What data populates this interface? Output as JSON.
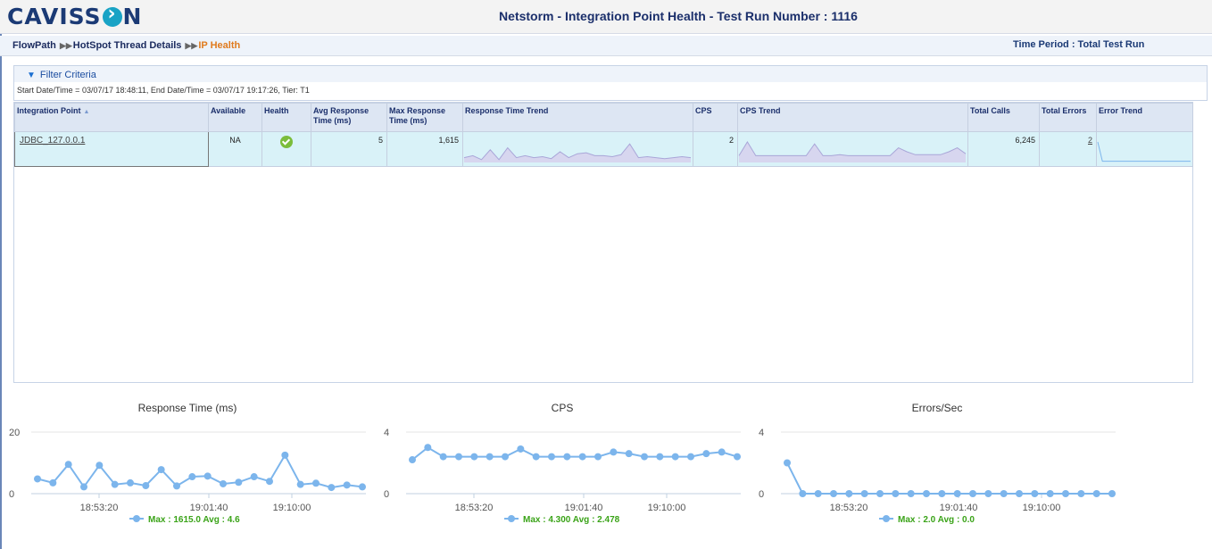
{
  "header": {
    "logo": "CAVISSON",
    "title": "Netstorm - Integration Point Health - Test Run Number : 1116"
  },
  "breadcrumb": {
    "items": [
      "FlowPath",
      "HotSpot Thread Details",
      "IP Health"
    ],
    "time_period": "Time Period : Total Test Run"
  },
  "filter": {
    "label": "Filter Criteria",
    "info": "Start Date/Time = 03/07/17 18:48:11, End Date/Time = 03/07/17 19:17:26, Tier: T1"
  },
  "table": {
    "columns": [
      "Integration Point",
      "Available",
      "Health",
      "Avg Response Time (ms)",
      "Max Response Time (ms)",
      "Response Time Trend",
      "CPS",
      "CPS Trend",
      "Total Calls",
      "Total Errors",
      "Error Trend"
    ],
    "rows": [
      {
        "integration_point": "JDBC_127.0.0.1",
        "available": "NA",
        "health": "ok",
        "avg_response": "5",
        "max_response": "1,615",
        "cps": "2",
        "total_calls": "6,245",
        "total_errors": "2",
        "rt_trend": [
          0.2,
          0.3,
          0.1,
          0.6,
          0.1,
          0.7,
          0.2,
          0.3,
          0.2,
          0.25,
          0.15,
          0.5,
          0.2,
          0.4,
          0.45,
          0.3,
          0.3,
          0.25,
          0.35,
          0.9,
          0.2,
          0.25,
          0.2,
          0.15,
          0.2,
          0.25,
          0.2
        ],
        "cps_trend": [
          0.3,
          1,
          0.3,
          0.3,
          0.3,
          0.3,
          0.3,
          0.3,
          0.3,
          0.9,
          0.3,
          0.3,
          0.35,
          0.3,
          0.3,
          0.3,
          0.3,
          0.3,
          0.3,
          0.7,
          0.5,
          0.35,
          0.35,
          0.35,
          0.35,
          0.5,
          0.7,
          0.4
        ],
        "err_trend": [
          1,
          0.02,
          0.02,
          0.02,
          0.02,
          0.02,
          0.02,
          0.02,
          0.02,
          0.02,
          0.02,
          0.02,
          0.02,
          0.02,
          0.02,
          0.02,
          0.02,
          0.02,
          0.02,
          0.02,
          0.02
        ]
      }
    ]
  },
  "chart_data": [
    {
      "type": "line",
      "title": "Response Time (ms)",
      "ylim": [
        0,
        20
      ],
      "yticks": [
        "0",
        "20"
      ],
      "xticks": [
        "18:53:20",
        "19:01:40",
        "19:10:00"
      ],
      "series": [
        {
          "values": [
            4.8,
            3.5,
            9.5,
            2.2,
            9.2,
            3.0,
            3.5,
            2.6,
            7.8,
            2.5,
            5.5,
            5.7,
            3.2,
            3.7,
            5.5,
            4.0,
            12.5,
            3.0,
            3.4,
            2.0,
            2.8,
            2.2
          ]
        }
      ],
      "legend": "Max : 1615.0 Avg : 4.6",
      "color": "#7cb5ec"
    },
    {
      "type": "line",
      "title": "CPS",
      "ylim": [
        0,
        4
      ],
      "yticks": [
        "0",
        "4"
      ],
      "xticks": [
        "18:53:20",
        "19:01:40",
        "19:10:00"
      ],
      "series": [
        {
          "values": [
            2.2,
            3.0,
            2.4,
            2.4,
            2.4,
            2.4,
            2.4,
            2.9,
            2.4,
            2.4,
            2.4,
            2.4,
            2.4,
            2.7,
            2.6,
            2.4,
            2.4,
            2.4,
            2.4,
            2.6,
            2.7,
            2.4
          ]
        }
      ],
      "legend": "Max : 4.300 Avg : 2.478",
      "color": "#7cb5ec"
    },
    {
      "type": "line",
      "title": "Errors/Sec",
      "ylim": [
        0,
        4
      ],
      "yticks": [
        "0",
        "4"
      ],
      "xticks": [
        "18:53:20",
        "19:01:40",
        "19:10:00"
      ],
      "series": [
        {
          "values": [
            2.0,
            0,
            0,
            0,
            0,
            0,
            0,
            0,
            0,
            0,
            0,
            0,
            0,
            0,
            0,
            0,
            0,
            0,
            0,
            0,
            0,
            0
          ]
        }
      ],
      "legend": "Max : 2.0 Avg : 0.0",
      "color": "#7cb5ec"
    }
  ],
  "colors": {
    "accent": "#e07b1f",
    "header_text": "#1b2f6b",
    "row_bg": "#d9f2f8",
    "legend_text": "#3aa318"
  }
}
